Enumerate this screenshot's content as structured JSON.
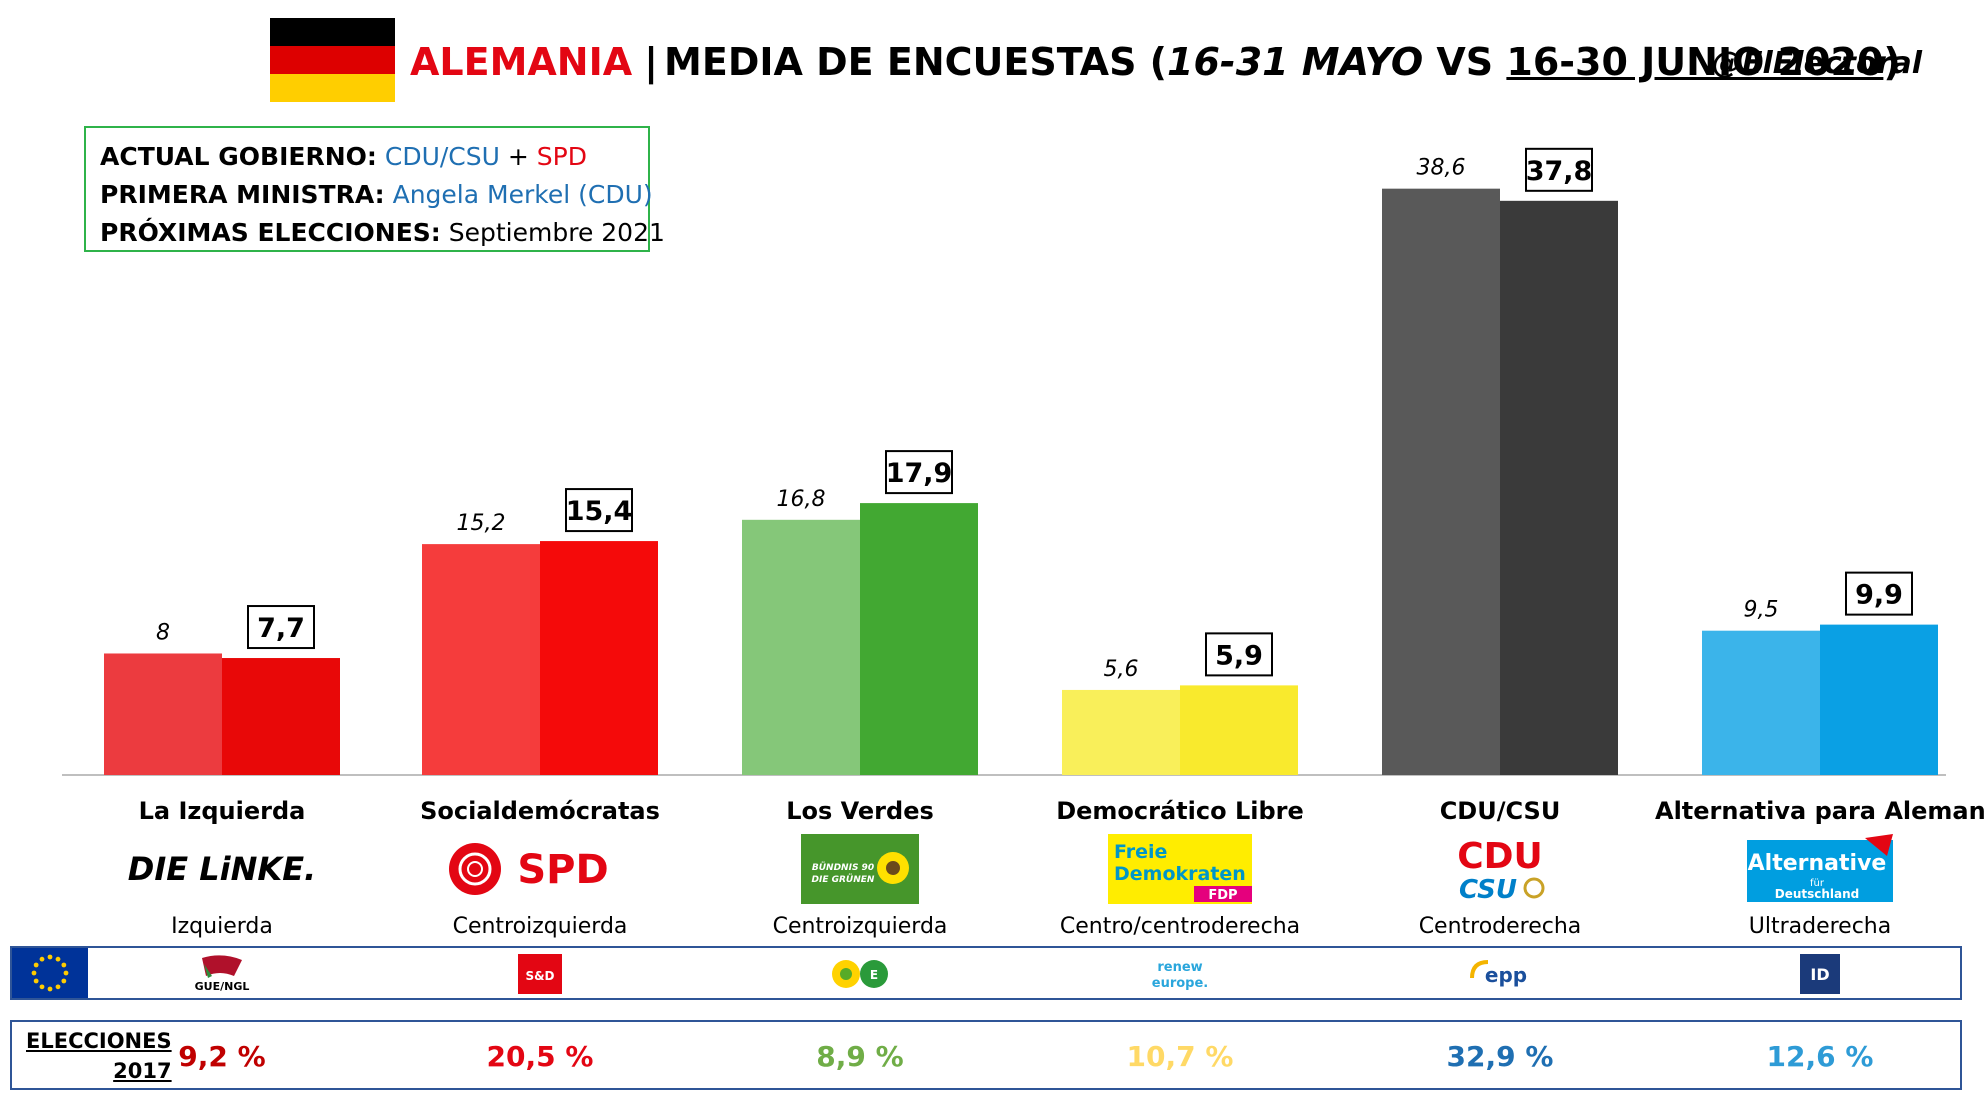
{
  "header": {
    "country": "ALEMANIA",
    "separator": "|",
    "subtitle_a": "MEDIA DE ENCUESTAS (",
    "period_prev": "16-31 MAYO",
    "vs": " VS ",
    "period_curr": "16-30 JUNIO 2020",
    "close_paren": ")",
    "handle": "@ElElectoral"
  },
  "info": {
    "gov_label": "ACTUAL GOBIERNO:",
    "gov_party1": "CDU/CSU",
    "gov_plus": "+",
    "gov_party2": "SPD",
    "pm_label": "PRIMERA MINISTRA:",
    "pm_value": "Angela Merkel (CDU)",
    "next_label": "PRÓXIMAS ELECCIONES:",
    "next_value": "Septiembre 2021"
  },
  "colors": {
    "accent_red": "#e30613",
    "accent_blue": "#1f6fb2",
    "box_green": "#2fb34a",
    "row_border": "#2f5597"
  },
  "chart_data": {
    "type": "bar",
    "title": "MEDIA DE ENCUESTAS (16-31 MAYO VS 16-30 JUNIO 2020)",
    "categories": [
      "La Izquierda",
      "Socialdemócratas",
      "Los Verdes",
      "Democrático Libre",
      "CDU/CSU",
      "Alternativa para Alemania"
    ],
    "series": [
      {
        "name": "16-31 MAYO",
        "values": [
          8,
          15.2,
          16.8,
          5.6,
          38.6,
          9.5
        ],
        "labels": [
          "8",
          "15,2",
          "16,8",
          "5,6",
          "38,6",
          "9,5"
        ]
      },
      {
        "name": "16-30 JUNIO 2020",
        "values": [
          7.7,
          15.4,
          17.9,
          5.9,
          37.8,
          9.9
        ],
        "labels": [
          "7,7",
          "15,4",
          "17,9",
          "5,9",
          "37,8",
          "9,9"
        ]
      }
    ],
    "colors_prev": [
      "#ec3b3f",
      "#f53c3c",
      "#85c779",
      "#f9ef5a",
      "#595959",
      "#3bb4ea"
    ],
    "colors_curr": [
      "#e80808",
      "#f50a0a",
      "#42a832",
      "#f9ea2d",
      "#3a3a3a",
      "#0aa0e4"
    ],
    "ylim": [
      0,
      40
    ],
    "grid": false,
    "legend": "none"
  },
  "parties": [
    {
      "name": "La Izquierda",
      "ideology": "Izquierda",
      "logo": "DIE LiNKE.",
      "logo_icon": "die-linke-logo",
      "group_icon": "gue-ngl-logo",
      "group_text": "GUE/NGL",
      "result_2017": "9,2 %",
      "result_color": "#c00000"
    },
    {
      "name": "Socialdemócratas",
      "ideology": "Centroizquierda",
      "logo": "SPD",
      "logo_icon": "spd-rose-logo",
      "group_icon": "s-and-d-logo",
      "group_text": "S&D",
      "result_2017": "20,5 %",
      "result_color": "#e30613"
    },
    {
      "name": "Los Verdes",
      "ideology": "Centroizquierda",
      "logo": "BÜNDNIS 90 DIE GRÜNEN",
      "logo_icon": "greens-sunflower-logo",
      "group_icon": "greens-efa-logo",
      "group_text": "",
      "result_2017": "8,9 %",
      "result_color": "#70ad47"
    },
    {
      "name": "Democrático Libre",
      "ideology": "Centro/centroderecha",
      "logo": "Freie Demokraten",
      "logo_sub": "FDP",
      "logo_icon": "fdp-logo",
      "group_icon": "renew-europe-logo",
      "group_text": "renew europe.",
      "result_2017": "10,7 %",
      "result_color": "#ffd966"
    },
    {
      "name": "CDU/CSU",
      "ideology": "Centroderecha",
      "logo": "CDU",
      "logo_sub": "CSU",
      "logo_icon": "cdu-csu-logo",
      "group_icon": "epp-logo",
      "group_text": "epp",
      "result_2017": "32,9 %",
      "result_color": "#1f6fb2"
    },
    {
      "name": "Alternativa para Alemania",
      "ideology": "Ultraderecha",
      "logo": "Alternative",
      "logo_sub": "für Deutschland",
      "logo_icon": "afd-logo",
      "group_icon": "id-group-logo",
      "group_text": "ID",
      "result_2017": "12,6 %",
      "result_color": "#2e9bd6"
    }
  ],
  "elections": {
    "label_line1": "ELECCIONES",
    "label_line2": "2017"
  }
}
